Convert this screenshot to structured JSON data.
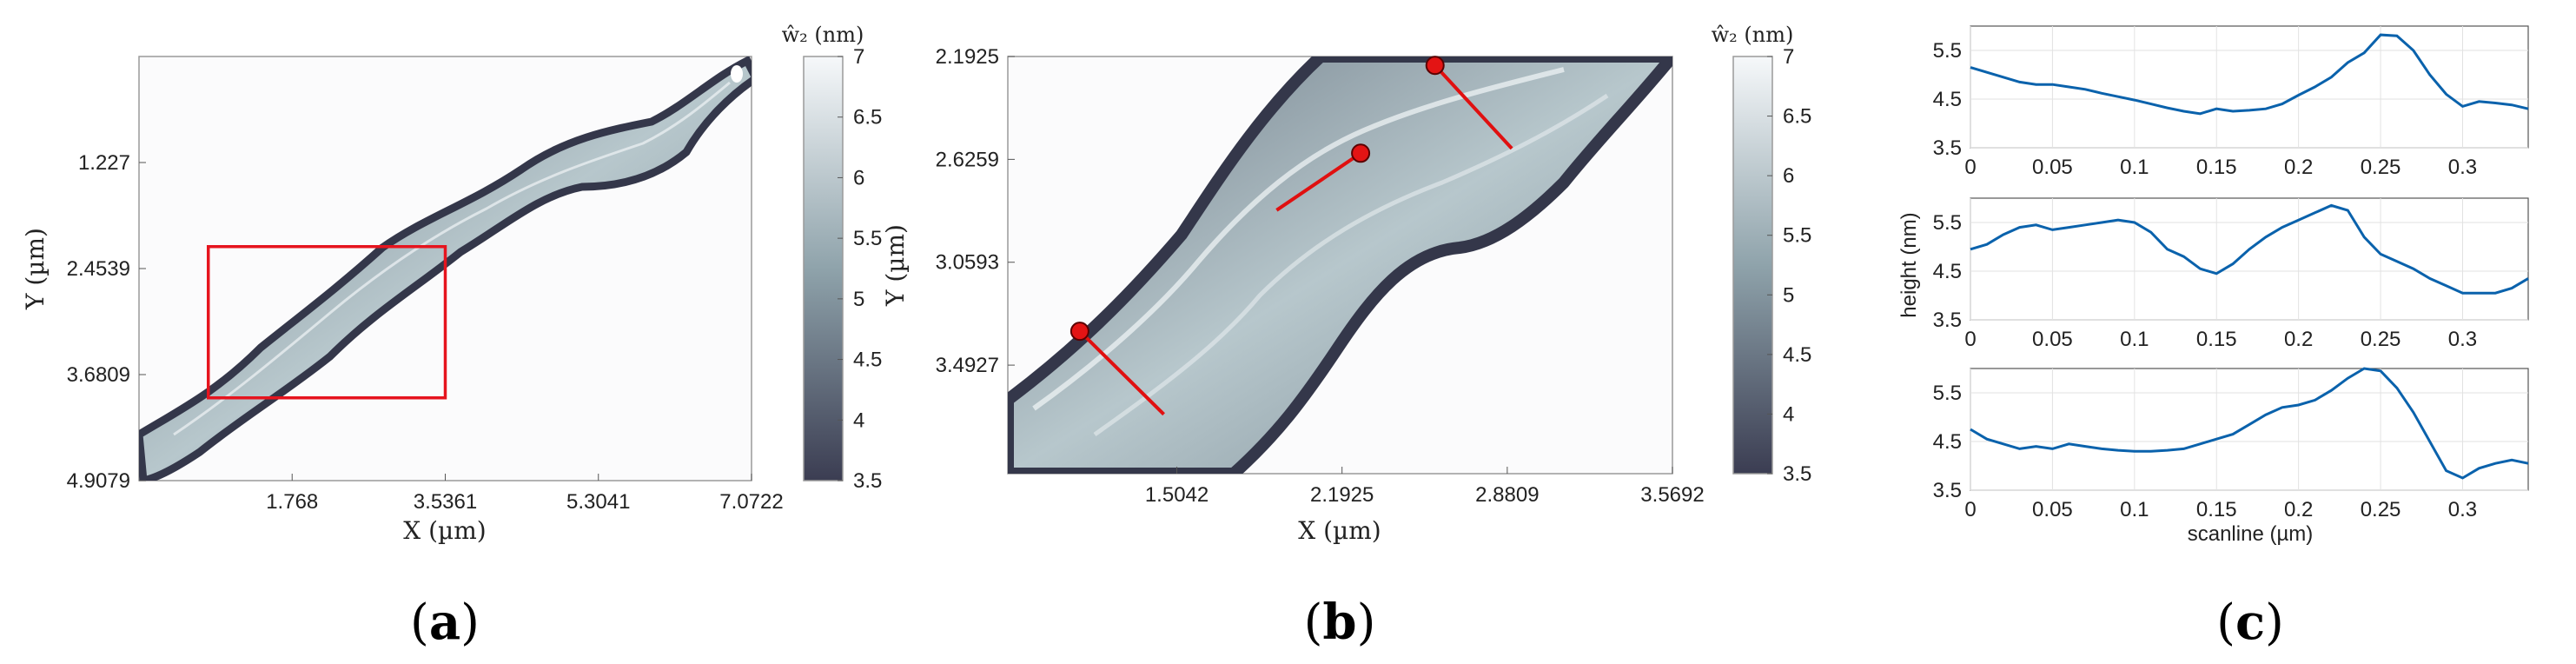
{
  "panels": {
    "a": {
      "caption_letter": "a"
    },
    "b": {
      "caption_letter": "b"
    },
    "c": {
      "caption_letter": "c"
    }
  },
  "colors": {
    "map_low": "#3b3d52",
    "map_mid": "#8fa3ab",
    "map_high": "#f6f8fa",
    "roi_box": "#e6141e",
    "scan_line": "#e01010",
    "scan_marker": "#e31414",
    "profile": "#0a62ac"
  },
  "chart_data": [
    {
      "type": "heatmap",
      "panel": "a",
      "xlabel": "X (µm)",
      "ylabel": "Y (µm)",
      "x_ticks": [
        1.768,
        3.5361,
        5.3041,
        7.0722
      ],
      "y_ticks": [
        1.227,
        2.4539,
        3.6809,
        4.9079
      ],
      "x_tick_labels": [
        "1.768",
        "3.5361",
        "5.3041",
        "7.0722"
      ],
      "y_tick_labels": [
        "1.227",
        "2.4539",
        "3.6809",
        "4.9079"
      ],
      "xlim": [
        0,
        7.0722
      ],
      "ylim": [
        0,
        4.9079
      ],
      "y_direction": "down",
      "colorbar": {
        "label": "ŵ₂ (nm)",
        "range": [
          3.5,
          7
        ],
        "tick_labels": [
          "3.5",
          "4",
          "4.5",
          "5",
          "5.5",
          "6",
          "6.5",
          "7"
        ]
      },
      "roi_box": {
        "x": [
          0.8,
          3.5361
        ],
        "y": [
          2.2,
          3.95
        ]
      }
    },
    {
      "type": "heatmap",
      "panel": "b",
      "xlabel": "X (µm)",
      "ylabel": "Y (µm)",
      "x_ticks": [
        1.5042,
        2.1925,
        2.8809,
        3.5692
      ],
      "y_ticks": [
        2.1925,
        2.6259,
        3.0593,
        3.4927
      ],
      "x_tick_labels": [
        "1.5042",
        "2.1925",
        "2.8809",
        "3.5692"
      ],
      "y_tick_labels": [
        "2.1925",
        "2.6259",
        "3.0593",
        "3.4927"
      ],
      "xlim": [
        0.8,
        3.5692
      ],
      "ylim": [
        2.1925,
        3.95
      ],
      "y_direction": "down",
      "colorbar": {
        "label": "ŵ₂ (nm)",
        "range": [
          3.5,
          7
        ],
        "tick_labels": [
          "3.5",
          "4",
          "4.5",
          "5",
          "5.5",
          "6",
          "6.5",
          "7"
        ]
      },
      "scanlines": [
        {
          "start": [
            1.1,
            3.35
          ],
          "end": [
            1.45,
            3.7
          ]
        },
        {
          "start": [
            2.27,
            2.6
          ],
          "end": [
            1.92,
            2.84
          ]
        },
        {
          "start": [
            2.58,
            2.23
          ],
          "end": [
            2.9,
            2.58
          ]
        }
      ]
    },
    {
      "type": "line",
      "panel": "c",
      "ylabel": "height (nm)",
      "xlabel": "scanline (µm)",
      "xlim": [
        0,
        0.34
      ],
      "ylim": [
        3.5,
        6
      ],
      "x_tick_labels": [
        "0",
        "0.05",
        "0.1",
        "0.15",
        "0.2",
        "0.25",
        "0.3"
      ],
      "y_tick_labels": [
        "3.5",
        "4.5",
        "5.5"
      ],
      "grid": true,
      "subplots": [
        {
          "x": [
            0,
            0.01,
            0.02,
            0.03,
            0.04,
            0.05,
            0.06,
            0.07,
            0.08,
            0.09,
            0.1,
            0.11,
            0.12,
            0.13,
            0.14,
            0.15,
            0.16,
            0.17,
            0.18,
            0.19,
            0.2,
            0.21,
            0.22,
            0.23,
            0.24,
            0.25,
            0.26,
            0.27,
            0.28,
            0.29,
            0.3,
            0.31,
            0.32,
            0.33,
            0.34
          ],
          "y": [
            5.15,
            5.05,
            4.95,
            4.85,
            4.8,
            4.8,
            4.75,
            4.7,
            4.62,
            4.55,
            4.48,
            4.4,
            4.32,
            4.25,
            4.2,
            4.3,
            4.25,
            4.27,
            4.3,
            4.4,
            4.58,
            4.75,
            4.95,
            5.25,
            5.45,
            5.82,
            5.8,
            5.5,
            5.0,
            4.6,
            4.35,
            4.45,
            4.42,
            4.38,
            4.3
          ]
        },
        {
          "x": [
            0,
            0.01,
            0.02,
            0.03,
            0.04,
            0.05,
            0.06,
            0.07,
            0.08,
            0.09,
            0.1,
            0.11,
            0.12,
            0.13,
            0.14,
            0.15,
            0.16,
            0.17,
            0.18,
            0.19,
            0.2,
            0.21,
            0.22,
            0.23,
            0.24,
            0.25,
            0.26,
            0.27,
            0.28,
            0.29,
            0.3,
            0.31,
            0.32,
            0.33,
            0.34
          ],
          "y": [
            4.95,
            5.05,
            5.25,
            5.4,
            5.45,
            5.35,
            5.4,
            5.45,
            5.5,
            5.55,
            5.5,
            5.3,
            4.95,
            4.8,
            4.55,
            4.45,
            4.65,
            4.95,
            5.2,
            5.4,
            5.55,
            5.7,
            5.85,
            5.75,
            5.2,
            4.85,
            4.7,
            4.55,
            4.35,
            4.2,
            4.05,
            4.05,
            4.05,
            4.15,
            4.35
          ]
        },
        {
          "x": [
            0,
            0.01,
            0.02,
            0.03,
            0.04,
            0.05,
            0.06,
            0.07,
            0.08,
            0.09,
            0.1,
            0.11,
            0.12,
            0.13,
            0.14,
            0.15,
            0.16,
            0.17,
            0.18,
            0.19,
            0.2,
            0.21,
            0.22,
            0.23,
            0.24,
            0.25,
            0.26,
            0.27,
            0.28,
            0.29,
            0.3,
            0.31,
            0.32,
            0.33,
            0.34
          ],
          "y": [
            4.75,
            4.55,
            4.45,
            4.35,
            4.4,
            4.35,
            4.45,
            4.4,
            4.35,
            4.32,
            4.3,
            4.3,
            4.32,
            4.35,
            4.45,
            4.55,
            4.65,
            4.85,
            5.05,
            5.2,
            5.25,
            5.35,
            5.55,
            5.8,
            6.0,
            5.95,
            5.6,
            5.1,
            4.5,
            3.9,
            3.75,
            3.95,
            4.05,
            4.12,
            4.05
          ]
        }
      ]
    }
  ]
}
